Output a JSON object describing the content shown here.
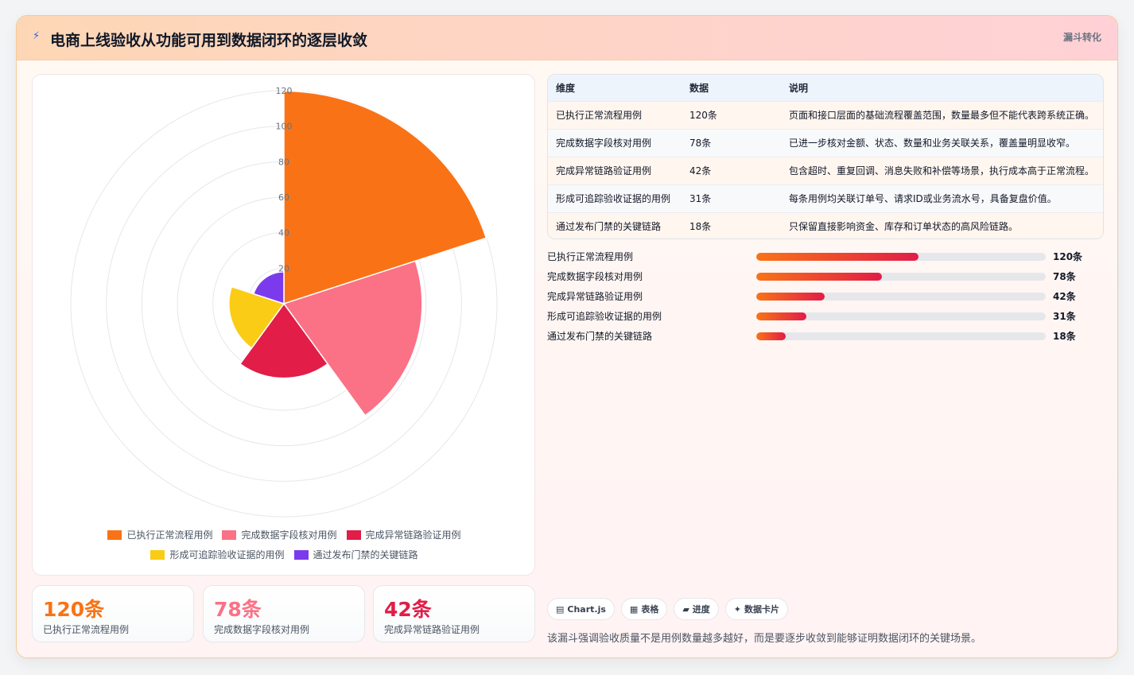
{
  "header": {
    "icon": "lightning-icon",
    "title": "电商上线验收从功能可用到数据闭环的逐层收敛",
    "tag": "漏斗转化"
  },
  "chart_data": {
    "type": "polarArea",
    "title": "",
    "unit": "条",
    "categories": [
      "已执行正常流程用例",
      "完成数据字段核对用例",
      "完成异常链路验证用例",
      "形成可追踪验收证据的用例",
      "通过发布门禁的关键链路"
    ],
    "values": [
      120,
      78,
      42,
      31,
      18
    ],
    "colors": [
      "#f97316",
      "#fb7185",
      "#e11d48",
      "#facc15",
      "#7c3aed"
    ],
    "r_axis": {
      "min": 0,
      "max": 120,
      "ticks": [
        "20",
        "40",
        "60",
        "80",
        "100",
        "120"
      ]
    },
    "legend_position": "bottom",
    "grid": true
  },
  "stats": [
    {
      "value": "120条",
      "label": "已执行正常流程用例",
      "color": "#f97316"
    },
    {
      "value": "78条",
      "label": "完成数据字段核对用例",
      "color": "#fb7185"
    },
    {
      "value": "42条",
      "label": "完成异常链路验证用例",
      "color": "#e11d48"
    }
  ],
  "table": {
    "headers": [
      "维度",
      "数据",
      "说明"
    ],
    "rows": [
      [
        "已执行正常流程用例",
        "120条",
        "页面和接口层面的基础流程覆盖范围，数量最多但不能代表跨系统正确。"
      ],
      [
        "完成数据字段核对用例",
        "78条",
        "已进一步核对金额、状态、数量和业务关联关系，覆盖量明显收窄。"
      ],
      [
        "完成异常链路验证用例",
        "42条",
        "包含超时、重复回调、消息失败和补偿等场景，执行成本高于正常流程。"
      ],
      [
        "形成可追踪验收证据的用例",
        "31条",
        "每条用例均关联订单号、请求ID或业务流水号，具备复盘价值。"
      ],
      [
        "通过发布门禁的关键链路",
        "18条",
        "只保留直接影响资金、库存和订单状态的高风险链路。"
      ]
    ]
  },
  "progress": [
    {
      "label": "已执行正常流程用例",
      "value": "120条",
      "fraction": 0.5604
    },
    {
      "label": "完成数据字段核对用例",
      "value": "78条",
      "fraction": 0.4341
    },
    {
      "label": "完成异常链路验证用例",
      "value": "42条",
      "fraction": 0.2363
    },
    {
      "label": "形成可追踪验收证据的用例",
      "value": "31条",
      "fraction": 0.1731
    },
    {
      "label": "通过发布门禁的关键链路",
      "value": "18条",
      "fraction": 0.1016
    }
  ],
  "chips": [
    {
      "icon": "chart-icon",
      "glyph": "▤",
      "label": "Chart.js"
    },
    {
      "icon": "table-icon",
      "glyph": "▦",
      "label": "表格"
    },
    {
      "icon": "progress-icon",
      "glyph": "▰",
      "label": "进度"
    },
    {
      "icon": "card-icon",
      "glyph": "✦",
      "label": "数据卡片"
    }
  ],
  "footnote": "该漏斗强调验收质量不是用例数量越多越好，而是要逐步收敛到能够证明数据闭环的关键场景。"
}
